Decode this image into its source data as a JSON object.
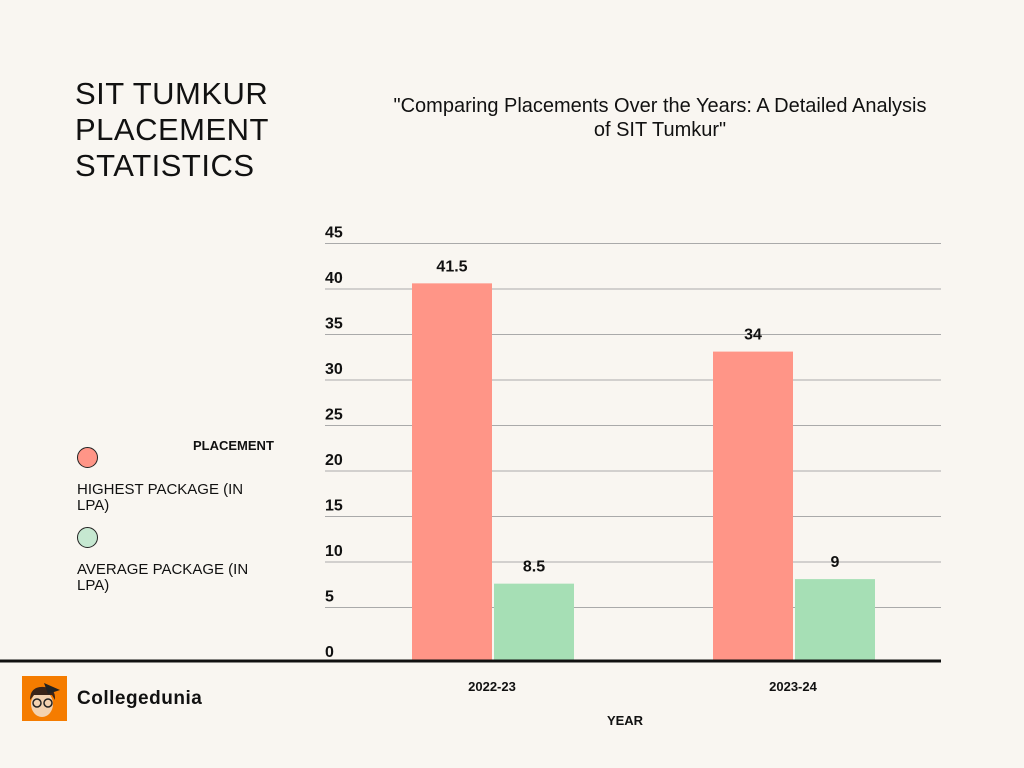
{
  "header": {
    "title": "SIT TUMKUR PLACEMENT STATISTICS",
    "subtitle": "\"Comparing Placements Over the Years: A Detailed Analysis of SIT Tumkur\""
  },
  "legend": {
    "title": "PLACEMENT",
    "items": [
      {
        "label": "HIGHEST PACKAGE (IN LPA)",
        "color": "#ff9587"
      },
      {
        "label": "AVERAGE PACKAGE (IN LPA)",
        "color": "#c6e8d1"
      }
    ]
  },
  "brand": {
    "name": "Collegedunia",
    "color": "#f57c00"
  },
  "chart_data": {
    "type": "bar",
    "title": "\"Comparing Placements Over the Years: A Detailed Analysis of SIT Tumkur\"",
    "xlabel": "YEAR",
    "ylabel": "",
    "categories": [
      "2022-23",
      "2023-24"
    ],
    "series": [
      {
        "name": "HIGHEST PACKAGE (IN LPA)",
        "values": [
          41.5,
          34
        ],
        "color": "#ff9587"
      },
      {
        "name": "AVERAGE PACKAGE (IN LPA)",
        "values": [
          8.5,
          9
        ],
        "color": "#a6dfb5"
      }
    ],
    "yticks": [
      0,
      5,
      10,
      15,
      20,
      25,
      30,
      35,
      40,
      45
    ],
    "ylim": [
      0,
      45
    ],
    "grid": true,
    "legend": "left"
  }
}
